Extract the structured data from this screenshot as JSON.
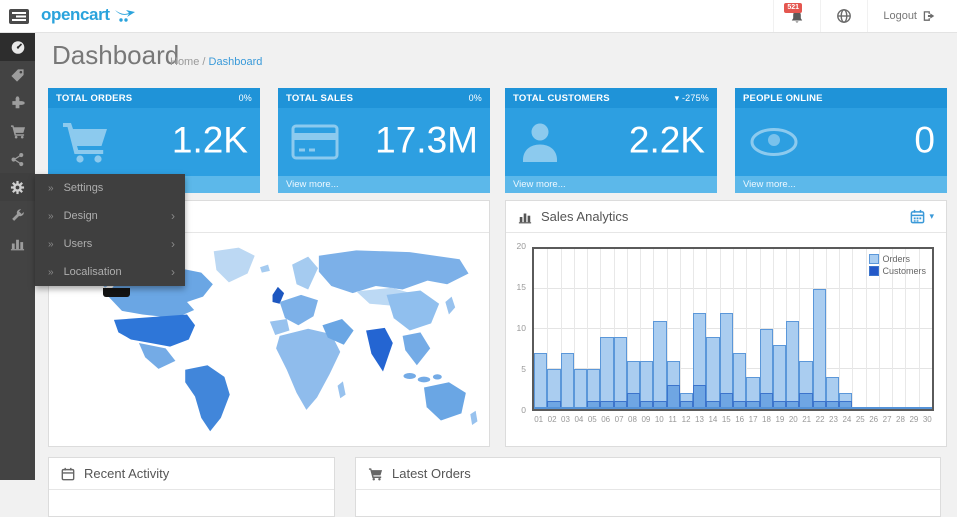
{
  "header": {
    "logo_text": "opencart",
    "notifications_badge": "521",
    "logout_label": "Logout"
  },
  "page": {
    "title": "Dashboard",
    "breadcrumb_home": "Home",
    "breadcrumb_sep": "/",
    "breadcrumb_current": "Dashboard"
  },
  "sidebar": {
    "items": [
      {
        "icon": "dashboard-icon",
        "state": "active"
      },
      {
        "icon": "tag-icon",
        "state": ""
      },
      {
        "icon": "puzzle-icon",
        "state": ""
      },
      {
        "icon": "shopping-cart-icon",
        "state": ""
      },
      {
        "icon": "share-icon",
        "state": ""
      },
      {
        "icon": "gear-icon",
        "state": "open"
      },
      {
        "icon": "wrench-icon",
        "state": ""
      },
      {
        "icon": "bar-chart-icon",
        "state": ""
      }
    ]
  },
  "flyout": {
    "chevron": "»",
    "arrow": "›",
    "items": [
      {
        "label": "Settings",
        "has_children": false
      },
      {
        "label": "Design",
        "has_children": true
      },
      {
        "label": "Users",
        "has_children": true
      },
      {
        "label": "Localisation",
        "has_children": true
      }
    ]
  },
  "tiles": [
    {
      "title": "TOTAL ORDERS",
      "delta": "0%",
      "value": "1.2K",
      "icon": "shopping-cart-icon",
      "footer": "View more..."
    },
    {
      "title": "TOTAL SALES",
      "delta": "0%",
      "value": "17.3M",
      "icon": "credit-card-icon",
      "footer": "View more..."
    },
    {
      "title": "TOTAL CUSTOMERS",
      "delta": "▾ -275%",
      "value": "2.2K",
      "icon": "user-icon",
      "footer": "View more..."
    },
    {
      "title": "PEOPLE ONLINE",
      "delta": "",
      "value": "0",
      "icon": "eye-icon",
      "footer": "View more..."
    }
  ],
  "analytics": {
    "title": "Sales Analytics"
  },
  "recent_activity": {
    "title": "Recent Activity"
  },
  "latest_orders": {
    "title": "Latest Orders"
  },
  "chart_data": {
    "type": "bar",
    "title": "Sales Analytics",
    "xlabel": "",
    "ylabel": "",
    "ylim": [
      0,
      20
    ],
    "yticks": [
      0,
      5,
      10,
      15,
      20
    ],
    "grid": true,
    "legend_position": "top-right",
    "categories": [
      "01",
      "02",
      "03",
      "04",
      "05",
      "06",
      "07",
      "08",
      "09",
      "10",
      "11",
      "12",
      "13",
      "14",
      "15",
      "16",
      "17",
      "18",
      "19",
      "20",
      "21",
      "22",
      "23",
      "24",
      "25",
      "26",
      "27",
      "28",
      "29",
      "30"
    ],
    "series": [
      {
        "name": "Orders",
        "fill": "#aacdf0",
        "stroke": "#5b97d9",
        "legend": "#a9cdf1",
        "values": [
          7,
          5,
          7,
          5,
          5,
          9,
          9,
          6,
          6,
          11,
          6,
          2,
          12,
          9,
          12,
          7,
          4,
          10,
          8,
          11,
          6,
          15,
          4,
          2,
          0,
          0,
          0,
          0,
          0,
          0
        ]
      },
      {
        "name": "Customers",
        "fill": "#6fa6e3",
        "stroke": "#3c74cc",
        "legend": "#2458c8",
        "values": [
          0,
          1,
          0,
          0,
          1,
          1,
          1,
          2,
          1,
          1,
          3,
          1,
          3,
          1,
          2,
          1,
          1,
          2,
          1,
          1,
          2,
          1,
          1,
          1,
          0,
          0,
          0,
          0,
          0,
          0
        ]
      }
    ]
  },
  "colors": {
    "accent_blue": "#2aa3dc",
    "tile_header": "#1f93d8",
    "tile_body": "#2d9fe1",
    "tile_footer": "#5cb8ea",
    "badge_red": "#e4564f",
    "sidebar_bg": "#434343",
    "map_country_dark": "#2e76d8",
    "map_country_light": "#bcd8f3"
  }
}
